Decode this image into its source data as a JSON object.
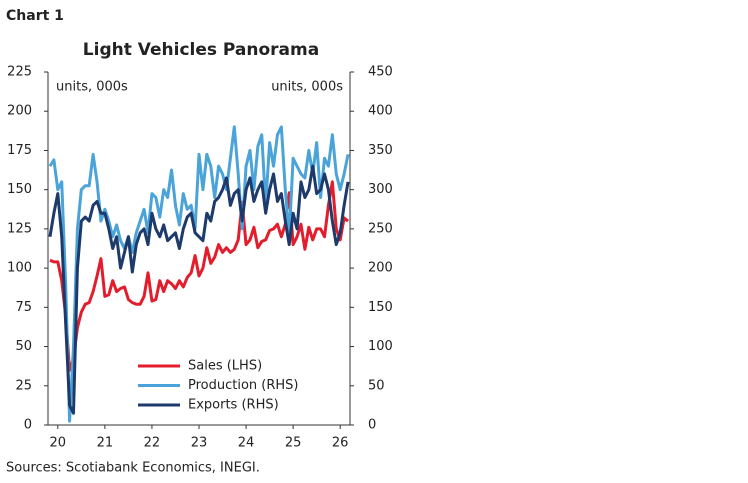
{
  "chart_data": {
    "type": "line",
    "label": "Chart 1",
    "title": "Light Vehicles Panorama",
    "y_unit_label": "units, 000s",
    "y2_unit_label": "units, 000s",
    "source": "Sources: Scotiabank Economics, INEGI.",
    "categories": [
      null,
      null,
      "20",
      null,
      null,
      null,
      null,
      null,
      null,
      null,
      null,
      null,
      null,
      null,
      "21",
      null,
      null,
      null,
      null,
      null,
      null,
      null,
      null,
      null,
      null,
      null,
      "22",
      null,
      null,
      null,
      null,
      null,
      null,
      null,
      null,
      null,
      null,
      null,
      "23",
      null,
      null,
      null,
      null,
      null,
      null,
      null,
      null,
      null,
      null,
      null,
      "24",
      null,
      null,
      null,
      null,
      null,
      null,
      null,
      null,
      null,
      null,
      null,
      "25",
      null,
      null,
      null,
      null,
      null,
      null,
      null,
      null,
      null,
      null,
      null,
      "26",
      null,
      null
    ],
    "ylim": [
      0,
      225
    ],
    "yticks": [
      0,
      25,
      50,
      75,
      100,
      125,
      150,
      175,
      200,
      225
    ],
    "y2lim": [
      0,
      450
    ],
    "y2ticks": [
      0,
      50,
      100,
      150,
      200,
      250,
      300,
      350,
      400,
      450
    ],
    "legend": "bottom",
    "series": [
      {
        "name": "Sales (LHS)",
        "color": "#e31d2b",
        "axis": "y",
        "values": [
          105,
          104,
          104,
          92,
          70,
          35,
          42,
          62,
          72,
          77,
          78,
          85,
          95,
          106,
          82,
          83,
          92,
          85,
          87,
          88,
          80,
          78,
          77,
          77,
          82,
          97,
          79,
          80,
          92,
          85,
          92,
          90,
          87,
          92,
          88,
          94,
          97,
          108,
          95,
          100,
          113,
          103,
          107,
          115,
          110,
          113,
          110,
          112,
          118,
          142,
          115,
          118,
          126,
          113,
          117,
          118,
          124,
          125,
          128,
          120,
          128,
          148,
          115,
          120,
          128,
          112,
          126,
          118,
          125,
          125,
          120,
          140,
          155,
          125,
          118,
          132,
          130
        ]
      },
      {
        "name": "Production (RHS)",
        "color": "#4aa3d9",
        "axis": "y2",
        "values": [
          330,
          338,
          300,
          310,
          180,
          5,
          100,
          250,
          300,
          305,
          305,
          345,
          310,
          260,
          275,
          260,
          240,
          255,
          235,
          225,
          240,
          220,
          245,
          260,
          275,
          245,
          295,
          290,
          265,
          300,
          290,
          325,
          280,
          255,
          295,
          275,
          280,
          250,
          345,
          300,
          345,
          330,
          290,
          330,
          320,
          300,
          340,
          380,
          320,
          250,
          330,
          350,
          300,
          355,
          370,
          280,
          360,
          330,
          370,
          380,
          300,
          240,
          340,
          330,
          320,
          315,
          350,
          320,
          360,
          290,
          340,
          330,
          370,
          320,
          300,
          320,
          345
        ]
      },
      {
        "name": "Exports (RHS)",
        "color": "#1d3a6b",
        "axis": "y2",
        "values": [
          240,
          270,
          295,
          240,
          130,
          25,
          15,
          200,
          260,
          265,
          260,
          280,
          285,
          270,
          270,
          250,
          225,
          240,
          200,
          220,
          240,
          195,
          230,
          245,
          250,
          230,
          270,
          250,
          240,
          255,
          235,
          240,
          245,
          225,
          250,
          265,
          270,
          245,
          240,
          235,
          270,
          260,
          285,
          290,
          300,
          315,
          280,
          295,
          300,
          260,
          300,
          315,
          285,
          300,
          310,
          270,
          300,
          320,
          285,
          295,
          260,
          230,
          270,
          250,
          310,
          290,
          300,
          330,
          295,
          300,
          320,
          300,
          260,
          230,
          245,
          280,
          310
        ]
      }
    ]
  }
}
